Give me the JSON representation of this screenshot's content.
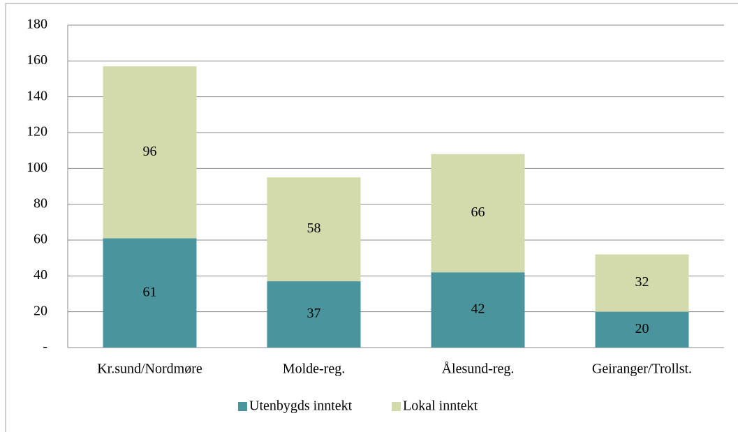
{
  "chart_data": {
    "type": "stacked_bar",
    "categories": [
      "Kr.sund/Nordmøre",
      "Molde-reg.",
      "Ålesund-reg.",
      "Geiranger/Trollst."
    ],
    "series": [
      {
        "name": "Utenbygds inntekt",
        "color": "#4a959d",
        "values": [
          61,
          37,
          42,
          20
        ]
      },
      {
        "name": "Lokal inntekt",
        "color": "#d3dbad",
        "values": [
          96,
          58,
          66,
          32
        ]
      }
    ],
    "ylim": [
      0,
      180
    ],
    "yticks": [
      {
        "value": 0,
        "label": "-"
      },
      20,
      40,
      60,
      80,
      100,
      120,
      140,
      160,
      180
    ],
    "grid": true,
    "legend": "bottom"
  }
}
